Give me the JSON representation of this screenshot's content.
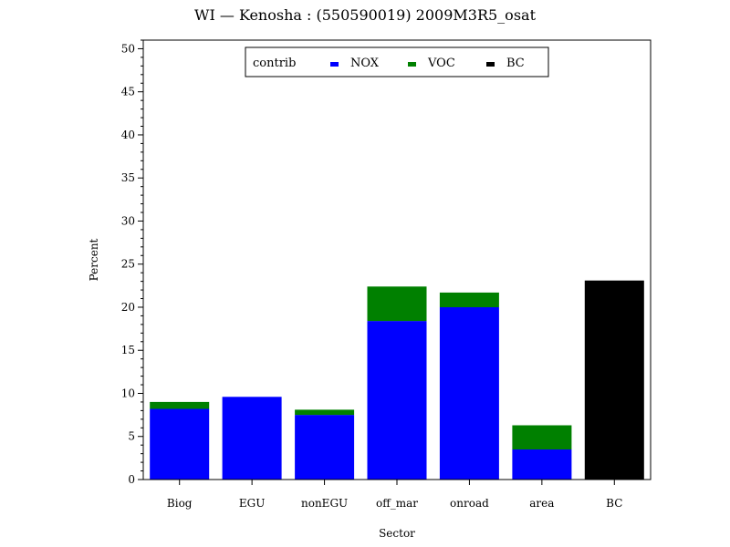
{
  "chart_data": {
    "type": "bar",
    "title": "WI  —  Kenosha  :  (550590019)  2009M3R5_osat",
    "xlabel": "Sector",
    "ylabel": "Percent",
    "ylim": [
      0,
      51
    ],
    "yticks": [
      0,
      5,
      10,
      15,
      20,
      25,
      30,
      35,
      40,
      45,
      50
    ],
    "stacked": true,
    "grid": false,
    "legend_placement": "top-center",
    "legend_title": "contrib",
    "categories": [
      "Biog",
      "EGU",
      "nonEGU",
      "off_mar",
      "onroad",
      "area",
      "BC"
    ],
    "series": [
      {
        "name": "NOX",
        "color": "#0000ff",
        "values": [
          8.2,
          9.6,
          7.5,
          18.4,
          20.0,
          3.5,
          0
        ]
      },
      {
        "name": "VOC",
        "color": "#008000",
        "values": [
          0.8,
          0.0,
          0.6,
          4.0,
          1.7,
          2.8,
          0
        ]
      },
      {
        "name": "BC",
        "color": "#000000",
        "values": [
          0,
          0,
          0,
          0,
          0,
          0,
          23.1
        ]
      }
    ]
  }
}
